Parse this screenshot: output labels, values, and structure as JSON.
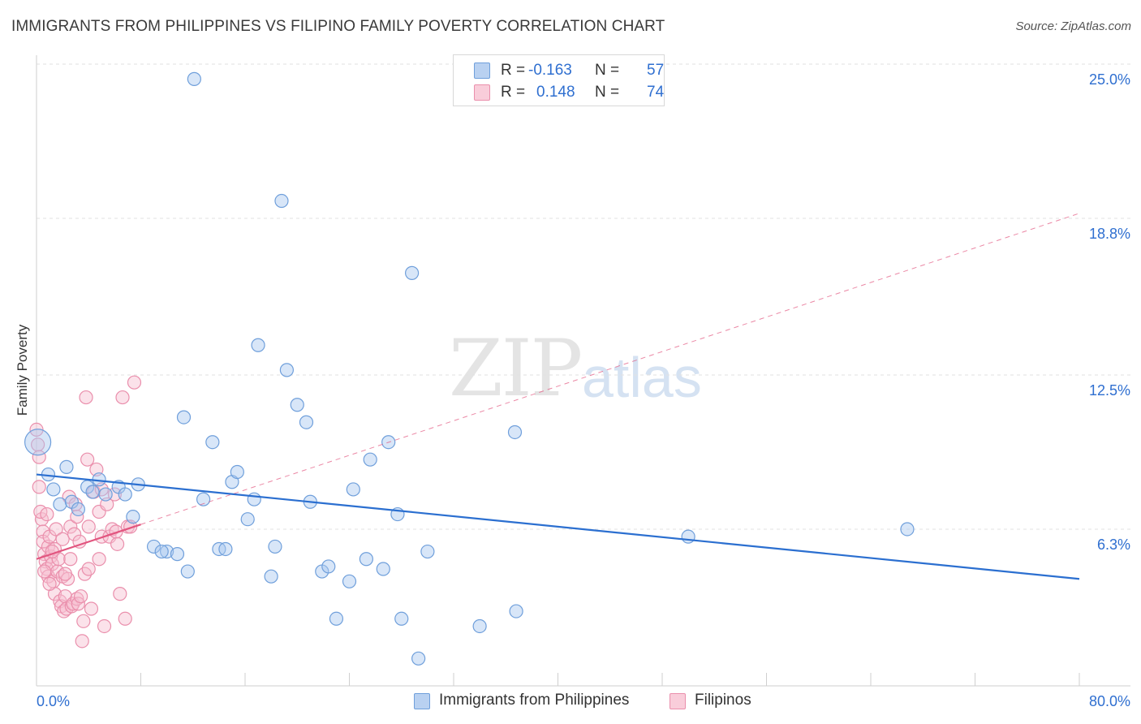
{
  "title": "IMMIGRANTS FROM PHILIPPINES VS FILIPINO FAMILY POVERTY CORRELATION CHART",
  "source": "Source: ZipAtlas.com",
  "watermark": {
    "zip": "ZIP",
    "atlas": "atlas"
  },
  "legend": {
    "r_label": "R =",
    "n_label": "N =",
    "series1": {
      "r": "-0.163",
      "n": "57"
    },
    "series2": {
      "r": "0.148",
      "n": "74"
    }
  },
  "colors": {
    "blue_fill": "#a9c7ef",
    "blue_stroke": "#6f9fdb",
    "blue_line": "#2b6fd0",
    "pink_fill": "#f6bfd0",
    "pink_stroke": "#ea8fac",
    "pink_line": "#e2557f",
    "tick_label": "#2f6fd0",
    "grid": "#e2e2e2"
  },
  "chart_data": {
    "type": "scatter",
    "title": "IMMIGRANTS FROM PHILIPPINES VS FILIPINO FAMILY POVERTY CORRELATION CHART",
    "xlabel": "",
    "ylabel": "Family Poverty",
    "xlim": [
      0,
      80
    ],
    "ylim": [
      0,
      25.0
    ],
    "x_tick_labels": [
      "0.0%",
      "80.0%"
    ],
    "y_ticks": [
      6.3,
      12.5,
      18.8,
      25.0
    ],
    "y_tick_labels": [
      "6.3%",
      "12.5%",
      "18.8%",
      "25.0%"
    ],
    "grid": true,
    "legend_position": "top-center",
    "series": [
      {
        "name": "Immigrants from Philippines",
        "color": "blue",
        "r": -0.163,
        "n": 57,
        "trend": {
          "x": [
            0,
            80
          ],
          "y": [
            8.5,
            4.3
          ],
          "style": "solid"
        },
        "points": [
          {
            "x": 0.1,
            "y": 9.8,
            "s": 2
          },
          {
            "x": 0.9,
            "y": 8.5,
            "s": 1
          },
          {
            "x": 1.3,
            "y": 7.9,
            "s": 1
          },
          {
            "x": 1.8,
            "y": 7.3,
            "s": 1
          },
          {
            "x": 2.3,
            "y": 8.8,
            "s": 1
          },
          {
            "x": 2.7,
            "y": 7.4,
            "s": 1
          },
          {
            "x": 3.2,
            "y": 7.1,
            "s": 1
          },
          {
            "x": 3.9,
            "y": 8.0,
            "s": 1
          },
          {
            "x": 4.3,
            "y": 7.8,
            "s": 1
          },
          {
            "x": 4.8,
            "y": 8.3,
            "s": 1
          },
          {
            "x": 5.3,
            "y": 7.7,
            "s": 1
          },
          {
            "x": 6.3,
            "y": 8.0,
            "s": 1
          },
          {
            "x": 6.8,
            "y": 7.7,
            "s": 1
          },
          {
            "x": 7.4,
            "y": 6.8,
            "s": 1
          },
          {
            "x": 7.8,
            "y": 8.1,
            "s": 1
          },
          {
            "x": 9.0,
            "y": 5.6,
            "s": 1
          },
          {
            "x": 10.0,
            "y": 5.4,
            "s": 1
          },
          {
            "x": 10.8,
            "y": 5.3,
            "s": 1
          },
          {
            "x": 11.3,
            "y": 10.8,
            "s": 1
          },
          {
            "x": 11.6,
            "y": 4.6,
            "s": 1
          },
          {
            "x": 12.1,
            "y": 24.4,
            "s": 1
          },
          {
            "x": 12.8,
            "y": 7.5,
            "s": 1
          },
          {
            "x": 13.5,
            "y": 9.8,
            "s": 1
          },
          {
            "x": 14.0,
            "y": 5.5,
            "s": 1
          },
          {
            "x": 14.5,
            "y": 5.5,
            "s": 1
          },
          {
            "x": 15.0,
            "y": 8.2,
            "s": 1
          },
          {
            "x": 15.4,
            "y": 8.6,
            "s": 1
          },
          {
            "x": 16.2,
            "y": 6.7,
            "s": 1
          },
          {
            "x": 16.7,
            "y": 7.5,
            "s": 1
          },
          {
            "x": 17.0,
            "y": 13.7,
            "s": 1
          },
          {
            "x": 18.0,
            "y": 4.4,
            "s": 1
          },
          {
            "x": 18.3,
            "y": 5.6,
            "s": 1
          },
          {
            "x": 18.8,
            "y": 19.5,
            "s": 1
          },
          {
            "x": 19.2,
            "y": 12.7,
            "s": 1
          },
          {
            "x": 20.0,
            "y": 11.3,
            "s": 1
          },
          {
            "x": 20.7,
            "y": 10.6,
            "s": 1
          },
          {
            "x": 21.0,
            "y": 7.4,
            "s": 1
          },
          {
            "x": 21.9,
            "y": 4.6,
            "s": 1
          },
          {
            "x": 22.4,
            "y": 4.8,
            "s": 1
          },
          {
            "x": 23.0,
            "y": 2.7,
            "s": 1
          },
          {
            "x": 24.0,
            "y": 4.2,
            "s": 1
          },
          {
            "x": 24.3,
            "y": 7.9,
            "s": 1
          },
          {
            "x": 25.3,
            "y": 5.1,
            "s": 1
          },
          {
            "x": 25.6,
            "y": 9.1,
            "s": 1
          },
          {
            "x": 26.6,
            "y": 4.7,
            "s": 1
          },
          {
            "x": 27.0,
            "y": 9.8,
            "s": 1
          },
          {
            "x": 27.7,
            "y": 6.9,
            "s": 1
          },
          {
            "x": 28.0,
            "y": 2.7,
            "s": 1
          },
          {
            "x": 28.8,
            "y": 16.6,
            "s": 1
          },
          {
            "x": 29.3,
            "y": 1.1,
            "s": 1
          },
          {
            "x": 30.0,
            "y": 5.4,
            "s": 1
          },
          {
            "x": 34.0,
            "y": 2.4,
            "s": 1
          },
          {
            "x": 36.7,
            "y": 10.2,
            "s": 1
          },
          {
            "x": 36.8,
            "y": 3.0,
            "s": 1
          },
          {
            "x": 50.0,
            "y": 6.0,
            "s": 1
          },
          {
            "x": 66.8,
            "y": 6.3,
            "s": 1
          },
          {
            "x": 9.6,
            "y": 5.4,
            "s": 1
          }
        ]
      },
      {
        "name": "Filipinos",
        "color": "pink",
        "r": 0.148,
        "n": 74,
        "trend": {
          "x": [
            0,
            80
          ],
          "y": [
            5.1,
            19.0
          ],
          "style": "solid to x=8, then dashed"
        },
        "points": [
          {
            "x": 0.0,
            "y": 10.3,
            "s": 1
          },
          {
            "x": 0.1,
            "y": 9.7,
            "s": 1
          },
          {
            "x": 0.2,
            "y": 9.2,
            "s": 1
          },
          {
            "x": 0.2,
            "y": 8.0,
            "s": 1
          },
          {
            "x": 0.4,
            "y": 6.7,
            "s": 1
          },
          {
            "x": 0.5,
            "y": 6.2,
            "s": 1
          },
          {
            "x": 0.5,
            "y": 5.8,
            "s": 1
          },
          {
            "x": 0.6,
            "y": 5.3,
            "s": 1
          },
          {
            "x": 0.7,
            "y": 5.0,
            "s": 1
          },
          {
            "x": 0.8,
            "y": 4.7,
            "s": 1
          },
          {
            "x": 0.9,
            "y": 4.4,
            "s": 1
          },
          {
            "x": 0.9,
            "y": 5.6,
            "s": 1
          },
          {
            "x": 1.0,
            "y": 6.0,
            "s": 1
          },
          {
            "x": 1.1,
            "y": 5.2,
            "s": 1
          },
          {
            "x": 1.2,
            "y": 4.9,
            "s": 1
          },
          {
            "x": 1.3,
            "y": 4.2,
            "s": 1
          },
          {
            "x": 1.4,
            "y": 3.7,
            "s": 1
          },
          {
            "x": 1.4,
            "y": 5.5,
            "s": 1
          },
          {
            "x": 1.5,
            "y": 6.3,
            "s": 1
          },
          {
            "x": 1.6,
            "y": 4.6,
            "s": 1
          },
          {
            "x": 1.7,
            "y": 5.1,
            "s": 1
          },
          {
            "x": 1.8,
            "y": 3.4,
            "s": 1
          },
          {
            "x": 1.9,
            "y": 3.2,
            "s": 1
          },
          {
            "x": 2.0,
            "y": 4.4,
            "s": 1
          },
          {
            "x": 2.0,
            "y": 5.9,
            "s": 1
          },
          {
            "x": 2.1,
            "y": 3.0,
            "s": 1
          },
          {
            "x": 2.2,
            "y": 3.6,
            "s": 1
          },
          {
            "x": 2.3,
            "y": 3.1,
            "s": 1
          },
          {
            "x": 2.4,
            "y": 4.3,
            "s": 1
          },
          {
            "x": 2.5,
            "y": 7.6,
            "s": 1
          },
          {
            "x": 2.6,
            "y": 6.4,
            "s": 1
          },
          {
            "x": 2.7,
            "y": 3.2,
            "s": 1
          },
          {
            "x": 2.8,
            "y": 3.3,
            "s": 1
          },
          {
            "x": 2.9,
            "y": 6.1,
            "s": 1
          },
          {
            "x": 3.0,
            "y": 7.3,
            "s": 1
          },
          {
            "x": 3.1,
            "y": 3.5,
            "s": 1
          },
          {
            "x": 3.2,
            "y": 3.3,
            "s": 1
          },
          {
            "x": 3.3,
            "y": 5.8,
            "s": 1
          },
          {
            "x": 3.4,
            "y": 3.6,
            "s": 1
          },
          {
            "x": 3.5,
            "y": 1.8,
            "s": 1
          },
          {
            "x": 3.6,
            "y": 2.6,
            "s": 1
          },
          {
            "x": 3.7,
            "y": 4.5,
            "s": 1
          },
          {
            "x": 3.8,
            "y": 11.6,
            "s": 1
          },
          {
            "x": 3.9,
            "y": 9.1,
            "s": 1
          },
          {
            "x": 4.0,
            "y": 6.4,
            "s": 1
          },
          {
            "x": 4.2,
            "y": 3.1,
            "s": 1
          },
          {
            "x": 4.4,
            "y": 7.8,
            "s": 1
          },
          {
            "x": 4.6,
            "y": 8.7,
            "s": 1
          },
          {
            "x": 4.8,
            "y": 5.1,
            "s": 1
          },
          {
            "x": 4.8,
            "y": 7.0,
            "s": 1
          },
          {
            "x": 5.0,
            "y": 6.0,
            "s": 1
          },
          {
            "x": 5.0,
            "y": 7.9,
            "s": 1
          },
          {
            "x": 5.2,
            "y": 2.4,
            "s": 1
          },
          {
            "x": 5.4,
            "y": 7.3,
            "s": 1
          },
          {
            "x": 5.6,
            "y": 6.0,
            "s": 1
          },
          {
            "x": 5.8,
            "y": 6.3,
            "s": 1
          },
          {
            "x": 6.0,
            "y": 7.7,
            "s": 1
          },
          {
            "x": 6.1,
            "y": 6.2,
            "s": 1
          },
          {
            "x": 6.2,
            "y": 5.7,
            "s": 1
          },
          {
            "x": 6.4,
            "y": 3.7,
            "s": 1
          },
          {
            "x": 6.6,
            "y": 11.6,
            "s": 1
          },
          {
            "x": 6.8,
            "y": 2.7,
            "s": 1
          },
          {
            "x": 7.0,
            "y": 6.4,
            "s": 1
          },
          {
            "x": 7.2,
            "y": 6.4,
            "s": 1
          },
          {
            "x": 7.5,
            "y": 12.2,
            "s": 1
          },
          {
            "x": 0.3,
            "y": 7.0,
            "s": 1
          },
          {
            "x": 0.6,
            "y": 4.6,
            "s": 1
          },
          {
            "x": 1.0,
            "y": 4.1,
            "s": 1
          },
          {
            "x": 1.2,
            "y": 5.4,
            "s": 1
          },
          {
            "x": 2.2,
            "y": 4.5,
            "s": 1
          },
          {
            "x": 2.6,
            "y": 5.1,
            "s": 1
          },
          {
            "x": 3.1,
            "y": 6.8,
            "s": 1
          },
          {
            "x": 4.0,
            "y": 4.7,
            "s": 1
          },
          {
            "x": 0.8,
            "y": 6.9,
            "s": 1
          }
        ]
      }
    ]
  }
}
